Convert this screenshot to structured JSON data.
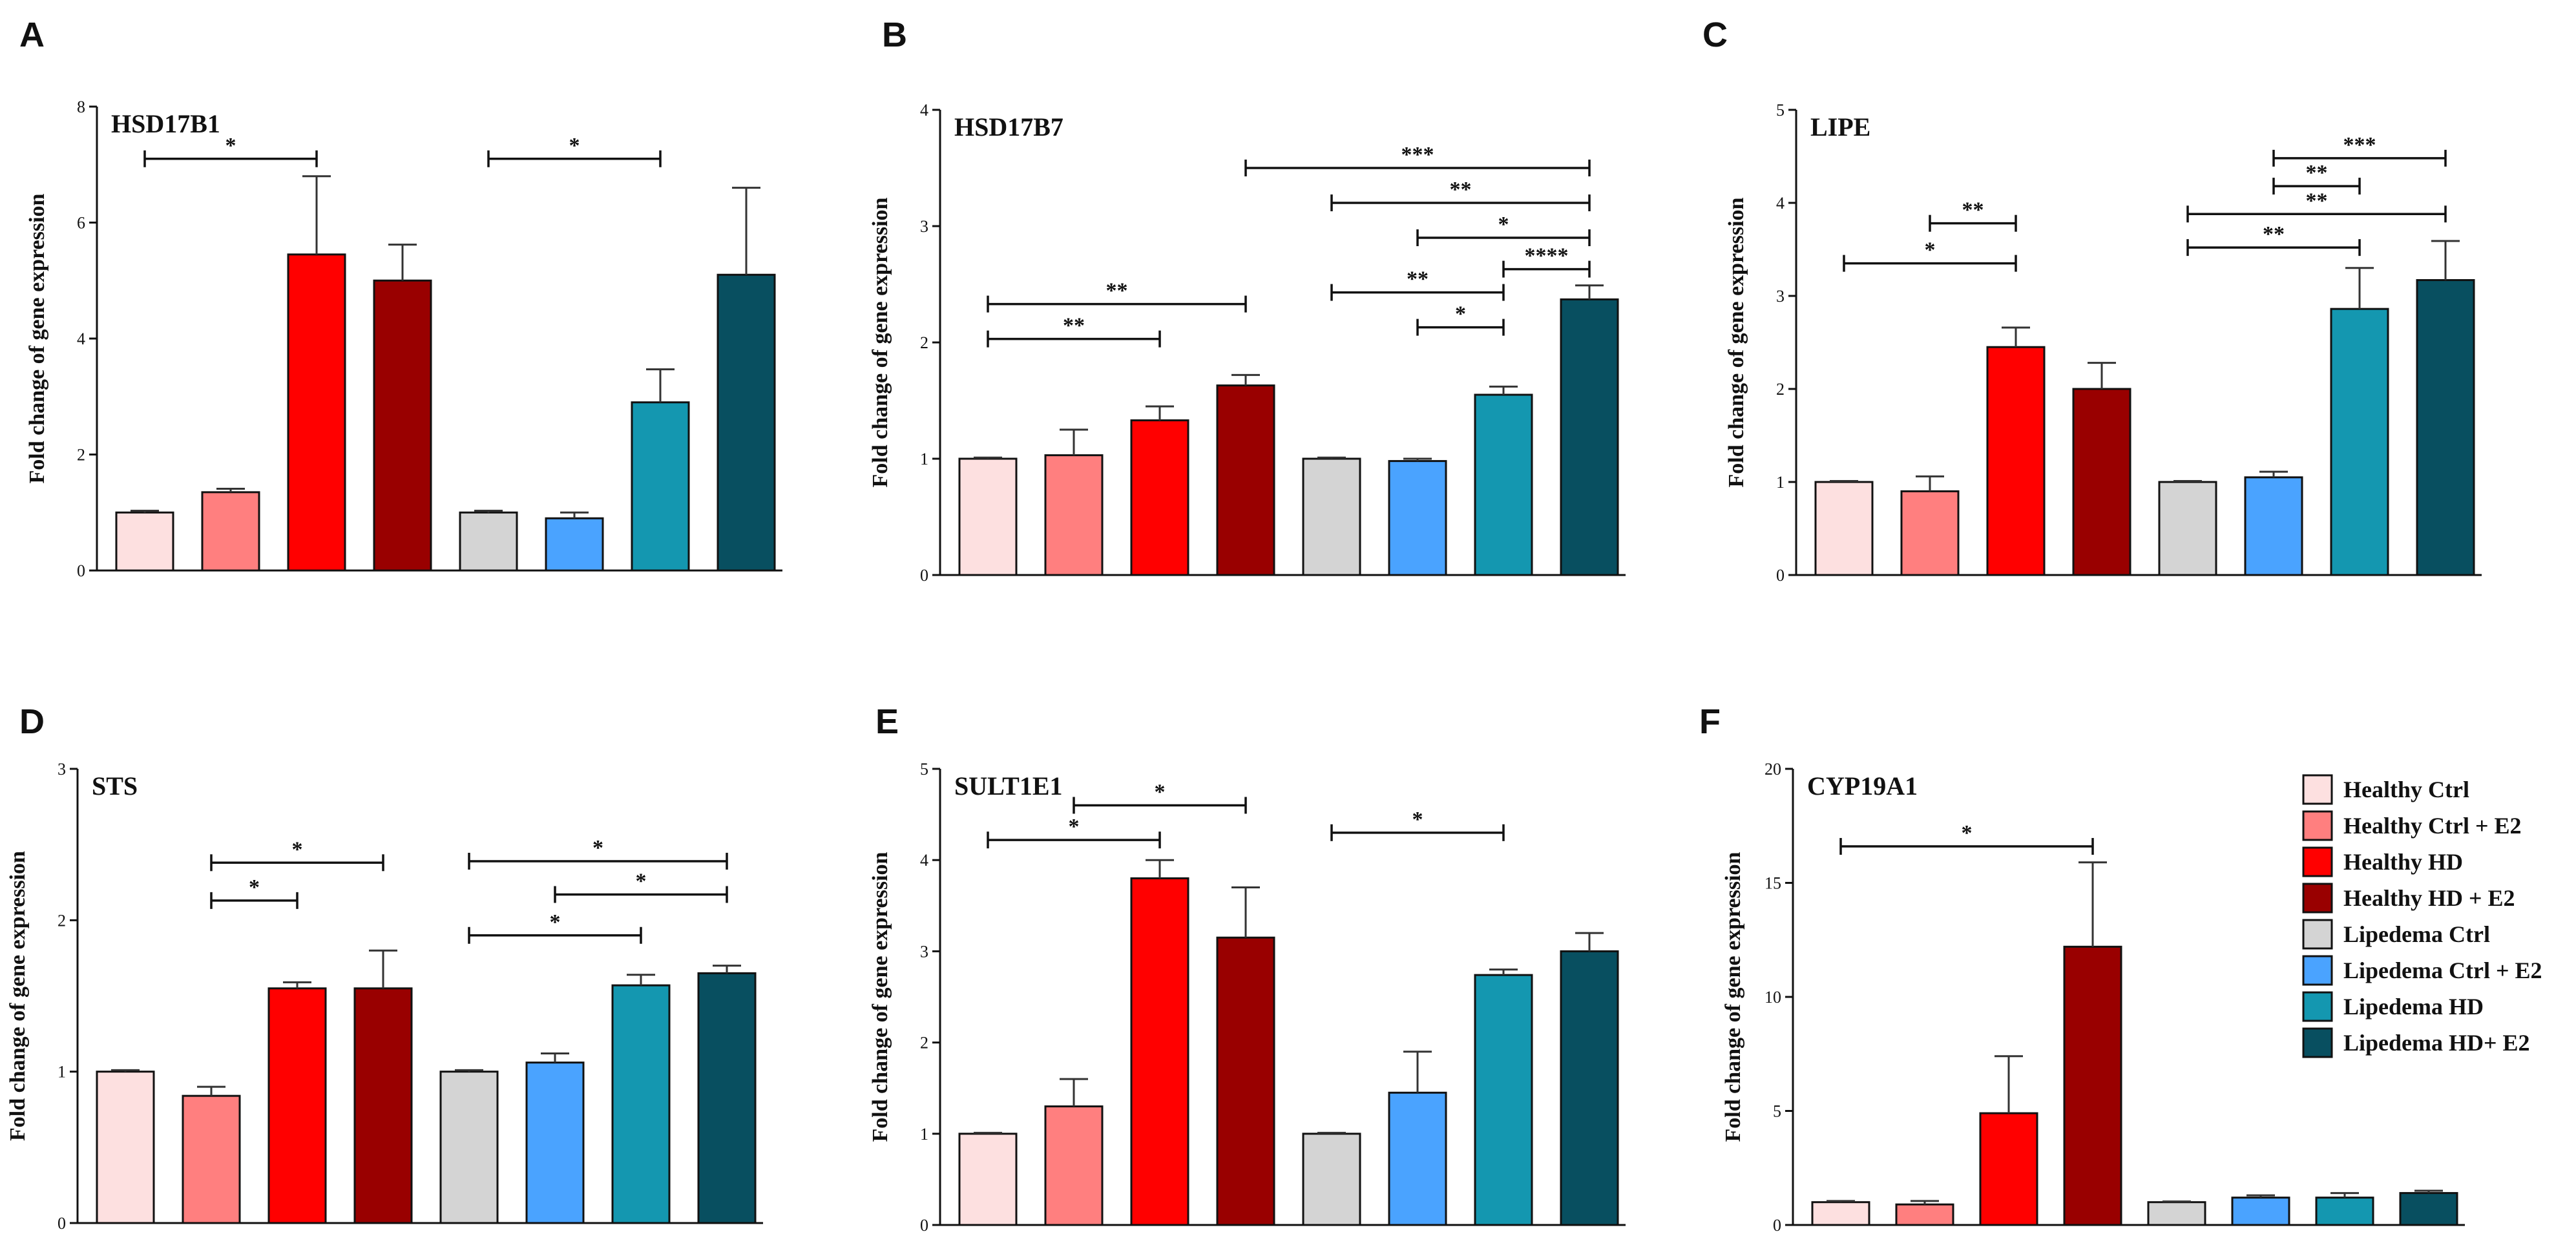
{
  "groups": [
    "Healthy Ctrl",
    "Healthy Ctrl + E2",
    "Healthy HD",
    "Healthy HD + E2",
    "Lipedema Ctrl",
    "Lipedema Ctrl + E2",
    "Lipedema HD",
    "Lipedema HD+ E2"
  ],
  "colors": [
    "#fde0e0",
    "#ff7f7f",
    "#ff0000",
    "#990000",
    "#d4d4d4",
    "#4aa3ff",
    "#1497b0",
    "#084f60"
  ],
  "legend_position": "right, beside panel F",
  "chart_data": [
    {
      "type": "bar",
      "panel": "A",
      "title": "HSD17B1",
      "ylabel": "Fold change of gene expression",
      "xlabel": "",
      "ylim": [
        0,
        8
      ],
      "yticks": [
        0,
        2,
        4,
        6,
        8
      ],
      "ytick_labels": [
        "0",
        "2",
        "4",
        "6",
        "8"
      ],
      "values": [
        1.0,
        1.35,
        5.45,
        5.0,
        1.0,
        0.9,
        2.9,
        5.1
      ],
      "errors": [
        0.03,
        0.06,
        1.35,
        0.62,
        0.03,
        0.1,
        0.57,
        1.5
      ],
      "significance": [
        {
          "from": 0,
          "to": 2,
          "label": "*",
          "y": 7.1
        },
        {
          "from": 4,
          "to": 6,
          "label": "*",
          "y": 7.1
        }
      ]
    },
    {
      "type": "bar",
      "panel": "B",
      "title": "HSD17B7",
      "ylabel": "Fold change of gene expression",
      "xlabel": "",
      "ylim": [
        0,
        4
      ],
      "yticks": [
        0,
        1,
        2,
        3,
        4
      ],
      "ytick_labels": [
        "0",
        "1",
        "2",
        "3",
        "4"
      ],
      "values": [
        1.0,
        1.03,
        1.33,
        1.63,
        1.0,
        0.98,
        1.55,
        2.37
      ],
      "errors": [
        0.01,
        0.22,
        0.12,
        0.09,
        0.01,
        0.02,
        0.07,
        0.12
      ],
      "significance": [
        {
          "from": 0,
          "to": 2,
          "label": "**",
          "y": 2.03
        },
        {
          "from": 0,
          "to": 3,
          "label": "**",
          "y": 2.33
        },
        {
          "from": 4,
          "to": 6,
          "label": "**",
          "y": 2.43
        },
        {
          "from": 5,
          "to": 6,
          "label": "*",
          "y": 2.13
        },
        {
          "from": 6,
          "to": 7,
          "label": "****",
          "y": 2.63
        },
        {
          "from": 5,
          "to": 7,
          "label": "*",
          "y": 2.9
        },
        {
          "from": 4,
          "to": 7,
          "label": "**",
          "y": 3.2
        },
        {
          "from": 3,
          "to": 7,
          "label": "***",
          "y": 3.5
        }
      ]
    },
    {
      "type": "bar",
      "panel": "C",
      "title": "LIPE",
      "ylabel": "Fold change of gene expression",
      "xlabel": "",
      "ylim": [
        0,
        5
      ],
      "yticks": [
        0,
        1,
        2,
        3,
        4,
        5
      ],
      "ytick_labels": [
        "0",
        "1",
        "2",
        "3",
        "4",
        "5"
      ],
      "values": [
        1.0,
        0.9,
        2.45,
        2.0,
        1.0,
        1.05,
        2.86,
        3.17
      ],
      "errors": [
        0.01,
        0.16,
        0.21,
        0.28,
        0.01,
        0.06,
        0.44,
        0.42
      ],
      "significance": [
        {
          "from": 0,
          "to": 2,
          "label": "*",
          "y": 3.35
        },
        {
          "from": 1,
          "to": 2,
          "label": "**",
          "y": 3.78
        },
        {
          "from": 4,
          "to": 6,
          "label": "**",
          "y": 3.52
        },
        {
          "from": 4,
          "to": 7,
          "label": "**",
          "y": 3.88
        },
        {
          "from": 5,
          "to": 6,
          "label": "**",
          "y": 4.18
        },
        {
          "from": 5,
          "to": 7,
          "label": "***",
          "y": 4.48
        }
      ]
    },
    {
      "type": "bar",
      "panel": "D",
      "title": "STS",
      "ylabel": "Fold change of gene expression",
      "xlabel": "",
      "ylim": [
        0,
        3
      ],
      "yticks": [
        0,
        1,
        2,
        3
      ],
      "ytick_labels": [
        "0",
        "1",
        "2",
        "3"
      ],
      "values": [
        1.0,
        0.84,
        1.55,
        1.55,
        1.0,
        1.06,
        1.57,
        1.65
      ],
      "errors": [
        0.01,
        0.06,
        0.04,
        0.25,
        0.01,
        0.06,
        0.07,
        0.05
      ],
      "significance": [
        {
          "from": 1,
          "to": 2,
          "label": "*",
          "y": 2.13
        },
        {
          "from": 1,
          "to": 3,
          "label": "*",
          "y": 2.38
        },
        {
          "from": 4,
          "to": 6,
          "label": "*",
          "y": 1.9
        },
        {
          "from": 5,
          "to": 7,
          "label": "*",
          "y": 2.17
        },
        {
          "from": 4,
          "to": 7,
          "label": "*",
          "y": 2.39
        }
      ]
    },
    {
      "type": "bar",
      "panel": "E",
      "title": "SULT1E1",
      "ylabel": "Fold change of gene expression",
      "xlabel": "",
      "ylim": [
        0,
        5
      ],
      "yticks": [
        0,
        1,
        2,
        3,
        4,
        5
      ],
      "ytick_labels": [
        "0",
        "1",
        "2",
        "3",
        "4",
        "5"
      ],
      "values": [
        1.0,
        1.3,
        3.8,
        3.15,
        1.0,
        1.45,
        2.74,
        3.0
      ],
      "errors": [
        0.01,
        0.3,
        0.2,
        0.55,
        0.01,
        0.45,
        0.06,
        0.2
      ],
      "significance": [
        {
          "from": 0,
          "to": 2,
          "label": "*",
          "y": 4.22
        },
        {
          "from": 1,
          "to": 3,
          "label": "*",
          "y": 4.6
        },
        {
          "from": 4,
          "to": 6,
          "label": "*",
          "y": 4.3
        }
      ]
    },
    {
      "type": "bar",
      "panel": "F",
      "title": "CYP19A1",
      "ylabel": "Fold change of gene expression",
      "xlabel": "",
      "ylim": [
        0,
        20
      ],
      "yticks": [
        0,
        5,
        10,
        15,
        20
      ],
      "ytick_labels": [
        "0",
        "5",
        "10",
        "15",
        "20"
      ],
      "values": [
        1.0,
        0.9,
        4.9,
        12.2,
        1.0,
        1.2,
        1.2,
        1.4
      ],
      "errors": [
        0.05,
        0.15,
        2.5,
        3.7,
        0.03,
        0.1,
        0.2,
        0.1
      ],
      "significance": [
        {
          "from": 0,
          "to": 3,
          "label": "*",
          "y": 16.6
        }
      ]
    }
  ]
}
